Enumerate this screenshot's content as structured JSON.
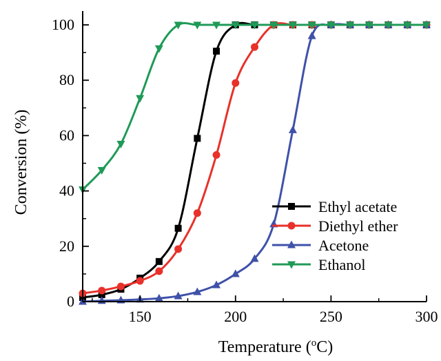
{
  "chart_data": {
    "type": "line",
    "title": "",
    "xlabel": "Temperature",
    "xlabel_unit_sup": "o",
    "xlabel_unit": "C",
    "ylabel": "Conversion (%)",
    "xlim": [
      120,
      300
    ],
    "ylim": [
      0,
      105
    ],
    "x_ticks": [
      150,
      200,
      250,
      300
    ],
    "y_ticks": [
      0,
      20,
      40,
      60,
      80,
      100
    ],
    "grid": false,
    "legend_position": "bottom-right",
    "series": [
      {
        "name": "Ethyl acetate",
        "color": "#000000",
        "marker": "square",
        "x": [
          120,
          130,
          140,
          150,
          160,
          170,
          180,
          190,
          200,
          210,
          220,
          230,
          240,
          250,
          260,
          270,
          280,
          290,
          300
        ],
        "y": [
          1.5,
          2.5,
          4.5,
          8.5,
          14.5,
          26.5,
          59,
          90.5,
          100,
          100,
          100,
          100,
          100,
          100,
          100,
          100,
          100,
          100,
          100
        ]
      },
      {
        "name": "Diethyl ether",
        "color": "#e8312a",
        "marker": "circle",
        "x": [
          120,
          130,
          140,
          150,
          160,
          170,
          180,
          190,
          200,
          210,
          220,
          230,
          240,
          250,
          260,
          270,
          280,
          290,
          300
        ],
        "y": [
          3,
          4,
          5.5,
          7.5,
          11,
          19,
          32,
          53,
          79,
          92,
          100,
          100,
          100,
          100,
          100,
          100,
          100,
          100,
          100
        ]
      },
      {
        "name": "Acetone",
        "color": "#3f51a8",
        "marker": "triangle-up",
        "x": [
          120,
          130,
          140,
          150,
          160,
          170,
          180,
          190,
          200,
          210,
          220,
          230,
          240,
          250,
          260,
          270,
          280,
          290,
          300
        ],
        "y": [
          0,
          0.3,
          0.5,
          0.8,
          1.2,
          2,
          3.5,
          6,
          10,
          15.5,
          28,
          62,
          96,
          100,
          100,
          100,
          100,
          100,
          100
        ]
      },
      {
        "name": "Ethanol",
        "color": "#1f9a57",
        "marker": "triangle-down",
        "x": [
          120,
          130,
          140,
          150,
          160,
          170,
          180,
          190,
          200,
          210,
          220,
          230,
          240,
          250,
          260,
          270,
          280,
          290,
          300
        ],
        "y": [
          40.5,
          47.5,
          57,
          73.5,
          91.5,
          100,
          100,
          100,
          100,
          100,
          100,
          100,
          100,
          100,
          100,
          100,
          100,
          100,
          100
        ]
      }
    ]
  }
}
